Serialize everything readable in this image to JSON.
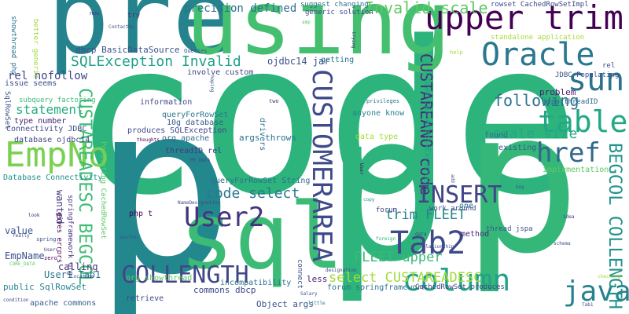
{
  "words": [
    {
      "text": "code",
      "color": "#2db47d"
    },
    {
      "text": "p",
      "color": "#23888e"
    },
    {
      "text": "p",
      "color": "#2db47d"
    },
    {
      "text": "p",
      "color": "#35b779"
    },
    {
      "text": "pre",
      "color": "#25838e"
    },
    {
      "text": "using",
      "color": "#44bf70"
    },
    {
      "text": "sql",
      "color": "#3bbb75"
    },
    {
      "text": "upper trim",
      "color": "#440154"
    },
    {
      "text": "Oracle",
      "color": "#2a788e"
    },
    {
      "text": "sun",
      "color": "#2c728e"
    },
    {
      "text": "table",
      "color": "#22a884"
    },
    {
      "text": "href",
      "color": "#31688e"
    },
    {
      "text": "EmpNo",
      "color": "#7ad151"
    },
    {
      "text": "column",
      "color": "#20a386"
    },
    {
      "text": "java",
      "color": "#26828e"
    },
    {
      "text": "Tab2",
      "color": "#3e4989"
    },
    {
      "text": "User2",
      "color": "#46337e"
    },
    {
      "text": "INSERT",
      "color": "#414487"
    },
    {
      "text": "CUSTOMERAREA",
      "color": "#3e4a89"
    },
    {
      "text": "COLLENGTH",
      "color": "#404688"
    },
    {
      "text": "BEGCOL COLLENGTH",
      "color": "#21918c"
    },
    {
      "text": "CUSTAREADESC BEGCOL",
      "color": "#3dbc74"
    },
    {
      "text": "CUSTAREANO code",
      "color": "#472c7a"
    },
    {
      "text": "Invalid scale",
      "color": "#5ec962"
    },
    {
      "text": "SQLException Invalid",
      "color": "#1fa088"
    },
    {
      "text": "following",
      "color": "#2c738e"
    },
    {
      "text": "scale size",
      "color": "#22a884"
    },
    {
      "text": "code select",
      "color": "#2a788e"
    },
    {
      "text": "select CUSTAREADESC",
      "color": "#a2da37"
    },
    {
      "text": "trim FLEET",
      "color": "#25848e"
    },
    {
      "text": "FLEET upper",
      "color": "#3aba76"
    },
    {
      "text": "precision defined",
      "color": "#2d708e"
    },
    {
      "text": "dbcp BasicDataSource",
      "color": "#3b528b"
    },
    {
      "text": "rel nofollow",
      "color": "#414487"
    },
    {
      "text": "statement",
      "color": "#27ad81"
    },
    {
      "text": "ojdbc14 jar",
      "color": "#3b518b"
    },
    {
      "text": "User1 Tab1",
      "color": "#2a768e"
    },
    {
      "text": "EmpName",
      "color": "#3b528b"
    },
    {
      "text": "value",
      "color": "#3a548c"
    },
    {
      "text": "wanted",
      "color": "#443a83"
    },
    {
      "text": "calling",
      "color": "#46307e"
    },
    {
      "text": "public SqlRowSet",
      "color": "#26828e"
    },
    {
      "text": "apache commons",
      "color": "#365c8d"
    },
    {
      "text": "Object args",
      "color": "#39568c"
    },
    {
      "text": "commons dbcp",
      "color": "#3e4a89"
    },
    {
      "text": "org showthread",
      "color": "#5ec962"
    },
    {
      "text": "retrieve",
      "color": "#3e4989"
    },
    {
      "text": "incompatibility",
      "color": "#2c728e"
    },
    {
      "text": "less",
      "color": "#482576"
    },
    {
      "text": "forum springframework",
      "color": "#2c738e"
    },
    {
      "text": "CachedRowSet produces",
      "color": "#414487"
    },
    {
      "text": "rowset CachedRowSetImpl",
      "color": "#3f4788"
    },
    {
      "text": "problem",
      "color": "#481b6d"
    },
    {
      "text": "jspa threadID",
      "color": "#31688e"
    },
    {
      "text": "found",
      "color": "#2f6c8e"
    },
    {
      "text": "existing",
      "color": "#365d8d"
    },
    {
      "text": "implementation",
      "color": "#5ec962"
    },
    {
      "text": "data type",
      "color": "#a5db36"
    },
    {
      "text": "anyone know",
      "color": "#26828e"
    },
    {
      "text": "information",
      "color": "#3e4a89"
    },
    {
      "text": "queryForRowSet",
      "color": "#2a788e"
    },
    {
      "text": "10g database",
      "color": "#365c8d"
    },
    {
      "text": "produces SQLException",
      "color": "#3f4889"
    },
    {
      "text": "org apache",
      "color": "#31688e"
    },
    {
      "text": "args throws",
      "color": "#2c728e"
    },
    {
      "text": "threadID rel",
      "color": "#443983"
    },
    {
      "text": "queryForRowSet String",
      "color": "#2e6e8e"
    },
    {
      "text": "type number",
      "color": "#482475"
    },
    {
      "text": "Connectivity JDBC",
      "color": "#3e4a89"
    },
    {
      "text": "database ojdbc14",
      "color": "#404688"
    },
    {
      "text": "Database Connectivity",
      "color": "#21918c"
    },
    {
      "text": "involve custom",
      "color": "#404688"
    },
    {
      "text": "getting",
      "color": "#2c728e"
    },
    {
      "text": "issue seems",
      "color": "#3b528b"
    },
    {
      "text": "subquery factoring",
      "color": "#3aba76"
    },
    {
      "text": "generic solution",
      "color": "#3f4788"
    },
    {
      "text": "suggest changing",
      "color": "#2c728e"
    },
    {
      "text": "standalone application",
      "color": "#a5db36"
    },
    {
      "text": "JDBC Populating",
      "color": "#3b528b"
    },
    {
      "text": "throws DataAccessException",
      "color": "#1f9e89"
    },
    {
      "text": "Populating CachedRowSet",
      "color": "#5ec962"
    },
    {
      "text": "springframework org",
      "color": "#46337e"
    },
    {
      "text": "showthread php",
      "color": "#2c738e"
    },
    {
      "text": "better generic",
      "color": "#a2da37"
    },
    {
      "text": "SqlRowSet",
      "color": "#3b528b"
    },
    {
      "text": "gives errors",
      "color": "#440154"
    },
    {
      "text": "method",
      "color": "#482878"
    },
    {
      "text": "thread jspa",
      "color": "#39568c"
    },
    {
      "text": "work around",
      "color": "#3f4788"
    },
    {
      "text": "forum",
      "color": "#3e4a89"
    },
    {
      "text": "drivers",
      "color": "#2c718e"
    },
    {
      "text": "connect",
      "color": "#3b528b"
    },
    {
      "text": "one",
      "color": "#2a788e"
    },
    {
      "text": "php t",
      "color": "#440154"
    },
    {
      "text": "rel",
      "color": "#3e4989"
    },
    {
      "text": "try",
      "color": "#46307e"
    },
    {
      "text": "new",
      "color": "#3f4788"
    },
    {
      "text": "ContactNo",
      "color": "#3b518b"
    },
    {
      "text": "Queries",
      "color": "#3b528b"
    },
    {
      "text": "amp",
      "color": "#5ec962"
    },
    {
      "text": "help",
      "color": "#a5db36"
    },
    {
      "text": "hoping",
      "color": "#3b528b"
    },
    {
      "text": "two",
      "color": "#443983"
    },
    {
      "text": "privileges",
      "color": "#2c728e"
    },
    {
      "text": "thoughts",
      "color": "#440154"
    },
    {
      "text": "MY_DATA",
      "color": "#404688"
    },
    {
      "text": "NameDesignation",
      "color": "#3e4a89"
    },
    {
      "text": "look",
      "color": "#482878"
    },
    {
      "text": "spring",
      "color": "#3a548c"
    },
    {
      "text": "really",
      "color": "#3e4a89"
    },
    {
      "text": "Users",
      "color": "#46337e"
    },
    {
      "text": "CORE_DATA",
      "color": "#5ec962"
    },
    {
      "text": "zero",
      "color": "#440154"
    },
    {
      "text": "Location",
      "color": "#3b528b"
    },
    {
      "text": "condition",
      "color": "#3f4788"
    },
    {
      "text": "another",
      "color": "#3b528b"
    },
    {
      "text": "Salary",
      "color": "#3b528b"
    },
    {
      "text": "little",
      "color": "#2c728e"
    },
    {
      "text": "designation",
      "color": "#3e4a89"
    },
    {
      "text": "relationship",
      "color": "#3f4788"
    },
    {
      "text": "foreign",
      "color": "#2db47d"
    },
    {
      "text": "data",
      "color": "#404688"
    },
    {
      "text": "copy",
      "color": "#21918c"
    },
    {
      "text": "add",
      "color": "#404688"
    },
    {
      "text": "User",
      "color": "#440154"
    },
    {
      "text": "key",
      "color": "#3b528b"
    },
    {
      "text": "idea",
      "color": "#46337e"
    },
    {
      "text": "schema",
      "color": "#3b528b"
    },
    {
      "text": "Tab1",
      "color": "#3f4788"
    },
    {
      "text": "checking",
      "color": "#a2da37"
    },
    {
      "text": "trying",
      "color": "#46337e"
    }
  ]
}
